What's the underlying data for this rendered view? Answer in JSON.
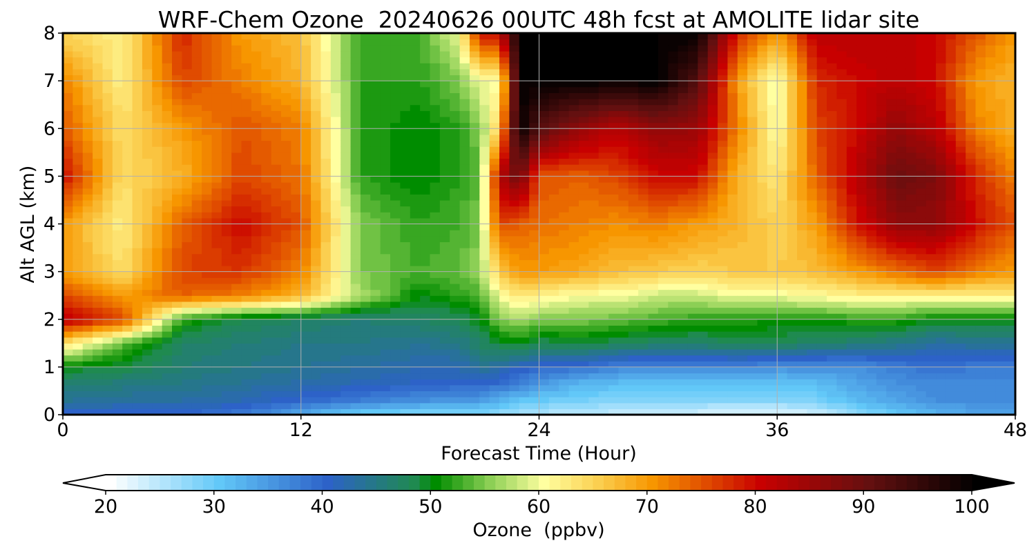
{
  "chart_data": {
    "type": "heatmap",
    "title": "WRF-Chem Ozone  20240626 00UTC 48h fcst at AMOLITE lidar site",
    "xlabel": "Forecast Time (Hour)",
    "ylabel": "Alt AGL (km)",
    "xlim": [
      0,
      48
    ],
    "ylim": [
      0,
      8
    ],
    "x_ticks": [
      "0",
      "12",
      "24",
      "36",
      "48"
    ],
    "y_ticks": [
      "0",
      "1",
      "2",
      "3",
      "4",
      "5",
      "6",
      "7",
      "8"
    ],
    "grid": true,
    "colorbar": {
      "label": "Ozone  (ppbv)",
      "range": [
        20,
        100
      ],
      "ticks": [
        "20",
        "30",
        "40",
        "50",
        "60",
        "70",
        "80",
        "90",
        "100"
      ],
      "extend": "both",
      "colors": [
        {
          "value": 20,
          "color": "#ffffff"
        },
        {
          "value": 30,
          "color": "#62c8f8"
        },
        {
          "value": 40,
          "color": "#2d62c8"
        },
        {
          "value": 48,
          "color": "#1f8a50"
        },
        {
          "value": 50,
          "color": "#008c00"
        },
        {
          "value": 55,
          "color": "#8ccf55"
        },
        {
          "value": 60,
          "color": "#ffffa0"
        },
        {
          "value": 65,
          "color": "#fbcf50"
        },
        {
          "value": 70,
          "color": "#f79600"
        },
        {
          "value": 80,
          "color": "#c80000"
        },
        {
          "value": 90,
          "color": "#641010"
        },
        {
          "value": 100,
          "color": "#000000"
        }
      ]
    },
    "time_hours": [
      0,
      3,
      6,
      9,
      12,
      15,
      18,
      20,
      21,
      22,
      23,
      24,
      26,
      28,
      30,
      32,
      34,
      36,
      38,
      40,
      42,
      44,
      46,
      48
    ],
    "altitude_km": [
      0,
      0.3,
      0.7,
      1,
      1.5,
      2,
      2.5,
      3,
      4,
      5,
      6,
      7,
      8
    ],
    "ozone_ppbv": [
      [
        40,
        44,
        47,
        50,
        64,
        82,
        76,
        70,
        70,
        80,
        75,
        72,
        65
      ],
      [
        40,
        43,
        46,
        49,
        54,
        76,
        70,
        64,
        62,
        64,
        64,
        62,
        62
      ],
      [
        40,
        43,
        45,
        46,
        47,
        52,
        74,
        76,
        74,
        68,
        70,
        76,
        78
      ],
      [
        38,
        42,
        44,
        45,
        46,
        48,
        72,
        77,
        80,
        76,
        75,
        72,
        70
      ],
      [
        33,
        40,
        43,
        44,
        45,
        47,
        68,
        72,
        75,
        73,
        72,
        68,
        67
      ],
      [
        29,
        38,
        42,
        43,
        45,
        46,
        57,
        55,
        55,
        52,
        52,
        52,
        52
      ],
      [
        28,
        36,
        41,
        42,
        44,
        47,
        50,
        53,
        52,
        50,
        50,
        52,
        53
      ],
      [
        28,
        35,
        41,
        42,
        45,
        48,
        52,
        54,
        53,
        52,
        52,
        55,
        60
      ],
      [
        28,
        35,
        41,
        44,
        47,
        50,
        53,
        56,
        55,
        54,
        55,
        60,
        80
      ],
      [
        27,
        33,
        40,
        43,
        49,
        55,
        60,
        66,
        76,
        82,
        66,
        60,
        80
      ],
      [
        26,
        31,
        38,
        41,
        50,
        57,
        63,
        70,
        74,
        90,
        100,
        100,
        100
      ],
      [
        25,
        30,
        36,
        40,
        48,
        55,
        62,
        70,
        73,
        75,
        92,
        100,
        100
      ],
      [
        25,
        29,
        33,
        39,
        49,
        55,
        60,
        69,
        72,
        74,
        86,
        100,
        100
      ],
      [
        24,
        28,
        32,
        37,
        48,
        54,
        60,
        67,
        71,
        76,
        82,
        100,
        100
      ],
      [
        24,
        28,
        32,
        37,
        47,
        53,
        58,
        66,
        72,
        80,
        86,
        100,
        100
      ],
      [
        23,
        28,
        32,
        37,
        47,
        52,
        58,
        65,
        70,
        80,
        85,
        92,
        100
      ],
      [
        22,
        28,
        32,
        37,
        48,
        52,
        60,
        66,
        68,
        68,
        72,
        70,
        78
      ],
      [
        22,
        28,
        31,
        36,
        48,
        51,
        60,
        66,
        65,
        63,
        60,
        59,
        70
      ],
      [
        23,
        29,
        32,
        36,
        47,
        51,
        61,
        67,
        70,
        74,
        76,
        78,
        82
      ],
      [
        27,
        32,
        34,
        36,
        46,
        52,
        62,
        70,
        79,
        82,
        80,
        80,
        82
      ],
      [
        30,
        34,
        36,
        38,
        45,
        52,
        62,
        73,
        86,
        90,
        86,
        82,
        82
      ],
      [
        32,
        36,
        37,
        39,
        43,
        50,
        62,
        76,
        86,
        88,
        82,
        80,
        80
      ],
      [
        34,
        36,
        37,
        38,
        44,
        50,
        62,
        72,
        80,
        78,
        72,
        70,
        75
      ],
      [
        34,
        36,
        37,
        38,
        44,
        50,
        62,
        70,
        75,
        72,
        68,
        68,
        70
      ]
    ]
  }
}
